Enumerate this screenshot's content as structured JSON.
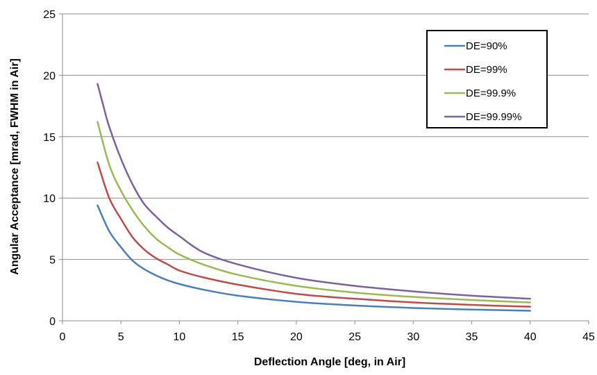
{
  "chart_data": {
    "type": "line",
    "xlabel": "Deflection Angle [deg, in Air]",
    "ylabel": "Angular Acceptance [mrad,  FWHM in Air]",
    "xlim": [
      0,
      45
    ],
    "ylim": [
      0,
      25
    ],
    "x_ticks": [
      0,
      5,
      10,
      15,
      20,
      25,
      30,
      35,
      40,
      45
    ],
    "y_ticks": [
      0,
      5,
      10,
      15,
      20,
      25
    ],
    "grid": "horizontal",
    "legend_position": "top-right",
    "series": [
      {
        "name": "DE=90%",
        "color": "#4a7ebb",
        "x": [
          3,
          4,
          5,
          6,
          7,
          8,
          9,
          10,
          12,
          15,
          20,
          25,
          30,
          35,
          40
        ],
        "y": [
          9.4,
          7.3,
          6.0,
          4.9,
          4.2,
          3.7,
          3.3,
          3.0,
          2.55,
          2.05,
          1.55,
          1.25,
          1.05,
          0.92,
          0.82
        ]
      },
      {
        "name": "DE=99%",
        "color": "#be4b48",
        "x": [
          3,
          4,
          5,
          6,
          7,
          8,
          9,
          10,
          12,
          15,
          20,
          25,
          30,
          35,
          40
        ],
        "y": [
          12.9,
          10.0,
          8.3,
          6.8,
          5.8,
          5.1,
          4.6,
          4.1,
          3.55,
          2.95,
          2.2,
          1.8,
          1.5,
          1.3,
          1.15
        ]
      },
      {
        "name": "DE=99.9%",
        "color": "#98b954",
        "x": [
          3,
          4,
          5,
          6,
          7,
          8,
          9,
          10,
          12,
          15,
          20,
          25,
          30,
          35,
          40
        ],
        "y": [
          16.2,
          12.7,
          10.6,
          9.0,
          7.7,
          6.7,
          6.0,
          5.4,
          4.6,
          3.75,
          2.85,
          2.3,
          1.95,
          1.7,
          1.5
        ]
      },
      {
        "name": "DE=99.99%",
        "color": "#7d60a0",
        "x": [
          3,
          3.5,
          4,
          5,
          6,
          7,
          8,
          9,
          10,
          12,
          15,
          20,
          25,
          30,
          35,
          40
        ],
        "y": [
          19.3,
          17.5,
          15.8,
          13.2,
          11.1,
          9.5,
          8.5,
          7.6,
          6.9,
          5.6,
          4.6,
          3.5,
          2.85,
          2.4,
          2.05,
          1.8
        ]
      }
    ]
  }
}
